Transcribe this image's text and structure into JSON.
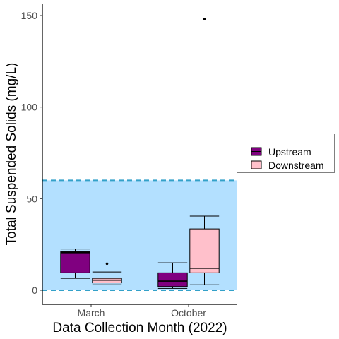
{
  "chart_data": {
    "type": "boxplot",
    "xlabel": "Data Collection Month (2022)",
    "ylabel": "Total Suspended Solids (mg/L)",
    "categories": [
      "March",
      "October"
    ],
    "ylim": [
      -3,
      155
    ],
    "yticks": [
      0,
      50,
      100,
      150
    ],
    "reference_band": {
      "lower": 0,
      "upper": 60,
      "color": "#b3e0ff",
      "line_color": "#33a1c9",
      "line_style": "dashed"
    },
    "series": [
      {
        "name": "Upstream",
        "fill": "#800080",
        "boxes": [
          {
            "category": "March",
            "whisker_low": 6.5,
            "q1": 9.5,
            "median": 20.5,
            "q3": 21,
            "whisker_high": 22.5,
            "outliers": []
          },
          {
            "category": "October",
            "whisker_low": 1,
            "q1": 2,
            "median": 5,
            "q3": 9.5,
            "whisker_high": 15,
            "outliers": []
          }
        ]
      },
      {
        "name": "Downstream",
        "fill": "#ffc0cb",
        "boxes": [
          {
            "category": "March",
            "whisker_low": 3,
            "q1": 4,
            "median": 5.5,
            "q3": 6.5,
            "whisker_high": 10,
            "outliers": [
              14.5
            ]
          },
          {
            "category": "October",
            "whisker_low": 3,
            "q1": 9.5,
            "median": 12,
            "q3": 33.5,
            "whisker_high": 40.5,
            "outliers": [
              148
            ]
          }
        ]
      }
    ],
    "legend": {
      "position": "right"
    },
    "grid": false
  }
}
